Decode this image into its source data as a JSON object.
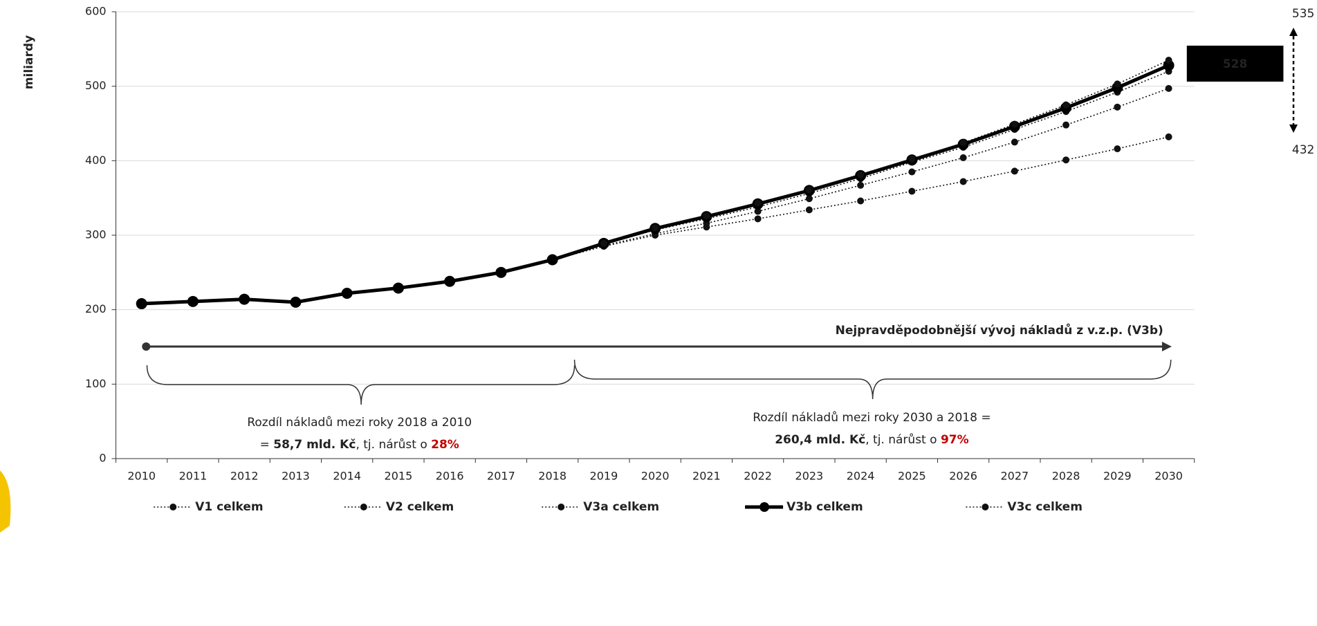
{
  "chart_data": {
    "type": "line",
    "y_label": "miliardy",
    "categories": [
      "2010",
      "2011",
      "2012",
      "2013",
      "2014",
      "2015",
      "2016",
      "2017",
      "2018",
      "2019",
      "2020",
      "2021",
      "2022",
      "2023",
      "2024",
      "2025",
      "2026",
      "2027",
      "2028",
      "2029",
      "2030"
    ],
    "ylim": [
      0,
      600
    ],
    "yticks": [
      0,
      100,
      200,
      300,
      400,
      500,
      600
    ],
    "grid": true,
    "legend": "bottom",
    "series": [
      {
        "name": "V1 celkem",
        "color": "#111111",
        "style": "dotted",
        "values": [
          null,
          null,
          null,
          null,
          null,
          null,
          null,
          null,
          267,
          285,
          300,
          311,
          322,
          334,
          346,
          359,
          372,
          386,
          401,
          416,
          432
        ]
      },
      {
        "name": "V2 celkem",
        "color": "#111111",
        "style": "dotted",
        "values": [
          null,
          null,
          null,
          null,
          null,
          null,
          null,
          null,
          267,
          286,
          302,
          316,
          332,
          349,
          367,
          385,
          404,
          425,
          448,
          472,
          497
        ]
      },
      {
        "name": "V3a celkem",
        "color": "#111111",
        "style": "dotted",
        "values": [
          null,
          null,
          null,
          null,
          null,
          null,
          null,
          null,
          267,
          288,
          307,
          322,
          338,
          356,
          376,
          398,
          418,
          442,
          466,
          492,
          520
        ]
      },
      {
        "name": "V3b celkem",
        "color": "#000000",
        "style": "solid",
        "values": [
          208,
          211,
          214,
          210,
          222,
          229,
          238,
          250,
          267,
          289,
          309,
          325,
          342,
          360,
          380,
          401,
          422,
          446,
          471,
          498,
          528
        ]
      },
      {
        "name": "V3c celkem",
        "color": "#111111",
        "style": "dotted",
        "values": [
          null,
          null,
          null,
          null,
          null,
          null,
          null,
          null,
          267,
          289,
          310,
          326,
          343,
          361,
          381,
          402,
          424,
          449,
          475,
          503,
          535
        ]
      }
    ],
    "annotations": {
      "arrow_label": "Nejpravděpodobnější vývoj nákladů z v.z.p. (V3b)",
      "highlight": "528",
      "range_high": "535",
      "range_low": "432",
      "note1": {
        "line1": "Rozdíl nákladů mezi roky 2018 a 2010",
        "prefix": "= ",
        "amount": "58,7 mld. Kč",
        "middle": ", tj. nárůst o ",
        "percent": "28%"
      },
      "note2": {
        "line1": "Rozdíl nákladů mezi roky 2030 a 2018 =",
        "amount": "260,4 mld. Kč",
        "middle": ", tj. nárůst o ",
        "percent": "97%"
      }
    }
  }
}
